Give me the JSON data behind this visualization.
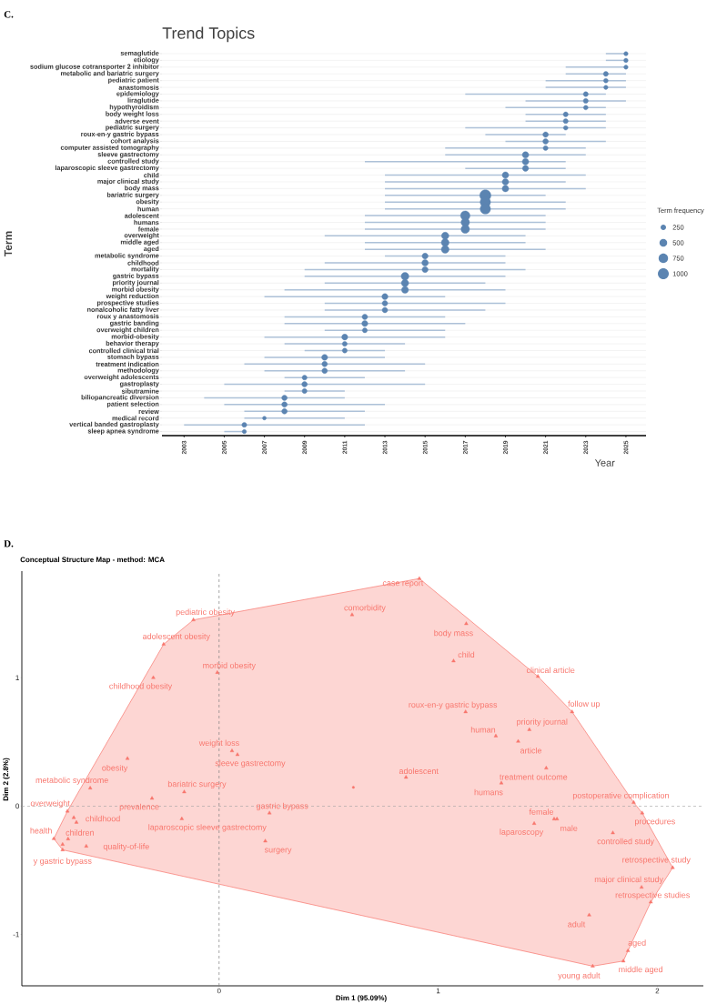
{
  "chart_data": [
    {
      "type": "bubble",
      "orientation": "horizontal",
      "title": "Trend Topics",
      "xlabel": "Year",
      "ylabel": "Term",
      "legend_title": "Term frequency",
      "annotations": [
        "C."
      ],
      "categories": [
        "semaglutide",
        "etiology",
        "sodium glucose cotransporter 2 inhibitor",
        "metabolic and bariatric surgery",
        "pediatric patient",
        "anastomosis",
        "epidemiology",
        "liraglutide",
        "hypothyroidism",
        "body weight loss",
        "adverse event",
        "pediatric surgery",
        "roux-en-y gastric bypass",
        "cohort analysis",
        "computer assisted tomography",
        "sleeve gastrectomy",
        "controlled study",
        "laparoscopic sleeve gastrectomy",
        "child",
        "major clinical study",
        "body mass",
        "bariatric surgery",
        "obesity",
        "human",
        "adolescent",
        "humans",
        "female",
        "overweight",
        "middle aged",
        "aged",
        "metabolic syndrome",
        "childhood",
        "mortality",
        "gastric bypass",
        "priority journal",
        "morbid obesity",
        "weight reduction",
        "prospective studies",
        "nonalcoholic fatty liver",
        "roux y anastomosis",
        "gastric banding",
        "overweight children",
        "morbid-obesity",
        "behavior therapy",
        "controlled clinical trial",
        "stomach bypass",
        "treatment indication",
        "methodology",
        "overweight adolescents",
        "gastroplasty",
        "sibutramine",
        "biliopancreatic diversion",
        "patient selection",
        "review",
        "medical record",
        "vertical banded gastroplasty",
        "sleep apnea syndrome"
      ],
      "values": [
        2025,
        2025,
        2025,
        2024,
        2024,
        2024,
        2023,
        2023,
        2023,
        2022,
        2022,
        2022,
        2021,
        2021,
        2021,
        2020,
        2020,
        2020,
        2019,
        2019,
        2019,
        2018,
        2018,
        2018,
        2017,
        2017,
        2017,
        2016,
        2016,
        2016,
        2015,
        2015,
        2015,
        2014,
        2014,
        2014,
        2013,
        2013,
        2013,
        2012,
        2012,
        2012,
        2011,
        2011,
        2011,
        2010,
        2010,
        2010,
        2009,
        2009,
        2009,
        2008,
        2008,
        2008,
        2007,
        2006,
        2006
      ],
      "errors": [
        [
          2024,
          2025
        ],
        [
          2024,
          2025
        ],
        [
          2022,
          2025
        ],
        [
          2022,
          2025
        ],
        [
          2021,
          2025
        ],
        [
          2021,
          2025
        ],
        [
          2017,
          2024
        ],
        [
          2020,
          2025
        ],
        [
          2019,
          2024
        ],
        [
          2020,
          2024
        ],
        [
          2020,
          2024
        ],
        [
          2017,
          2024
        ],
        [
          2018,
          2022
        ],
        [
          2019,
          2024
        ],
        [
          2016,
          2023
        ],
        [
          2016,
          2023
        ],
        [
          2012,
          2022
        ],
        [
          2017,
          2022
        ],
        [
          2013,
          2023
        ],
        [
          2013,
          2022
        ],
        [
          2013,
          2023
        ],
        [
          2013,
          2021
        ],
        [
          2013,
          2022
        ],
        [
          2013,
          2022
        ],
        [
          2012,
          2021
        ],
        [
          2012,
          2021
        ],
        [
          2012,
          2021
        ],
        [
          2010,
          2020
        ],
        [
          2012,
          2020
        ],
        [
          2012,
          2021
        ],
        [
          2013,
          2019
        ],
        [
          2010,
          2019
        ],
        [
          2009,
          2020
        ],
        [
          2009,
          2019
        ],
        [
          2010,
          2018
        ],
        [
          2008,
          2019
        ],
        [
          2007,
          2016
        ],
        [
          2010,
          2019
        ],
        [
          2010,
          2018
        ],
        [
          2008,
          2016
        ],
        [
          2008,
          2017
        ],
        [
          2010,
          2016
        ],
        [
          2007,
          2016
        ],
        [
          2008,
          2014
        ],
        [
          2009,
          2013
        ],
        [
          2007,
          2013
        ],
        [
          2006,
          2015
        ],
        [
          2007,
          2014
        ],
        [
          2008,
          2012
        ],
        [
          2005,
          2015
        ],
        [
          2008,
          2011
        ],
        [
          2004,
          2011
        ],
        [
          2005,
          2013
        ],
        [
          2006,
          2012
        ],
        [
          2006,
          2011
        ],
        [
          2003,
          2012
        ],
        [
          2005,
          2006
        ]
      ],
      "sizes": [
        150,
        150,
        150,
        200,
        170,
        150,
        200,
        200,
        170,
        200,
        200,
        170,
        250,
        250,
        200,
        350,
        350,
        300,
        350,
        350,
        350,
        1050,
        900,
        900,
        750,
        600,
        600,
        450,
        500,
        500,
        300,
        350,
        300,
        500,
        450,
        400,
        300,
        250,
        250,
        250,
        300,
        200,
        300,
        200,
        200,
        300,
        250,
        250,
        200,
        250,
        200,
        250,
        250,
        250,
        120,
        200,
        150
      ],
      "size_legend": [
        250,
        500,
        750,
        1000
      ],
      "color": "#5b84b1",
      "xlim": [
        2001.9,
        2026
      ],
      "xticks": [
        2003,
        2005,
        2007,
        2009,
        2011,
        2013,
        2015,
        2017,
        2019,
        2021,
        2023,
        2025
      ],
      "grid": "y"
    },
    {
      "type": "scatter",
      "title": "Conceptual Structure Map - method: MCA",
      "xlabel": "Dim 1 (95.09%)",
      "ylabel": "Dim 2 (2.8%)",
      "annotations": [
        "D.",
        {
          "text": "case report",
          "x": 0.914,
          "y": 1.772
        },
        {
          "text": "comorbidity",
          "x": 0.607,
          "y": 1.49
        },
        {
          "text": "pediatric obesity",
          "x": -0.117,
          "y": 1.45
        },
        {
          "text": "adolescent obesity",
          "x": -0.253,
          "y": 1.26
        },
        {
          "text": "morbid obesity",
          "x": -0.008,
          "y": 1.04
        },
        {
          "text": "childhood obesity",
          "x": -0.3,
          "y": 1.0
        },
        {
          "text": "weight loss",
          "x": 0.059,
          "y": 0.43
        },
        {
          "text": "sleeve gastrectomy",
          "x": 0.084,
          "y": 0.4
        },
        {
          "text": "obesity",
          "x": -0.418,
          "y": 0.37
        },
        {
          "text": "metabolic syndrome",
          "x": -0.588,
          "y": 0.14
        },
        {
          "text": "bariatric surgery",
          "x": -0.159,
          "y": 0.11
        },
        {
          "text": "overweight",
          "x": -0.692,
          "y": -0.04
        },
        {
          "text": "prevalence",
          "x": -0.306,
          "y": 0.06
        },
        {
          "text": "gastric bypass",
          "x": 0.23,
          "y": -0.054
        },
        {
          "text": "childhood",
          "x": -0.663,
          "y": -0.09
        },
        {
          "text": "laparoscopic sleeve gastrectomy",
          "x": -0.17,
          "y": -0.099
        },
        {
          "text": "health",
          "x": -0.754,
          "y": -0.254
        },
        {
          "text": "children",
          "x": -0.689,
          "y": -0.256
        },
        {
          "text": "quality-of-life",
          "x": -0.606,
          "y": -0.313
        },
        {
          "text": "y gastric bypass",
          "x": -0.714,
          "y": -0.341
        },
        {
          "text": "surgery",
          "x": 0.211,
          "y": -0.273
        },
        {
          "text": "body mass",
          "x": 1.128,
          "y": 1.42
        },
        {
          "text": "child",
          "x": 1.07,
          "y": 1.13
        },
        {
          "text": "clinical article",
          "x": 1.455,
          "y": 1.01
        },
        {
          "text": "roux-en-y gastric bypass",
          "x": 1.125,
          "y": 0.734
        },
        {
          "text": "follow up",
          "x": 1.611,
          "y": 0.734
        },
        {
          "text": "priority journal",
          "x": 1.416,
          "y": 0.595
        },
        {
          "text": "human",
          "x": 1.263,
          "y": 0.546
        },
        {
          "text": "article",
          "x": 1.365,
          "y": 0.504
        },
        {
          "text": "adolescent",
          "x": 0.853,
          "y": 0.224
        },
        {
          "text": "treatment outcome",
          "x": 1.493,
          "y": 0.296
        },
        {
          "text": "humans",
          "x": 1.288,
          "y": 0.179
        },
        {
          "text": "postoperative complication",
          "x": 1.892,
          "y": 0.028
        },
        {
          "text": "female",
          "x": 1.529,
          "y": -0.101
        },
        {
          "text": "procedures",
          "x": 1.931,
          "y": -0.054
        },
        {
          "text": "male",
          "x": 1.542,
          "y": -0.101
        },
        {
          "text": "laparoscopy",
          "x": 1.438,
          "y": -0.136
        },
        {
          "text": "controlled study",
          "x": 1.797,
          "y": -0.209
        },
        {
          "text": "retrospective study",
          "x": 2.07,
          "y": -0.48
        },
        {
          "text": "major clinical study",
          "x": 1.928,
          "y": -0.633
        },
        {
          "text": "retrospective studies",
          "x": 1.97,
          "y": -0.748
        },
        {
          "text": "adult",
          "x": 1.689,
          "y": -0.849
        },
        {
          "text": "aged",
          "x": 1.866,
          "y": -1.127
        },
        {
          "text": "middle aged",
          "x": 1.845,
          "y": -1.207
        },
        {
          "text": "young adult",
          "x": 1.705,
          "y": -1.247
        }
      ],
      "series": [
        {
          "type": "area",
          "color": "#f8766d",
          "x": [
            0.914,
            1.455,
            1.611,
            1.892,
            1.931,
            2.07,
            1.97,
            1.866,
            1.845,
            1.705,
            -0.714,
            -0.754,
            -0.692,
            -0.253,
            -0.117,
            0.914
          ],
          "values": [
            1.772,
            1.01,
            0.734,
            0.028,
            -0.054,
            -0.48,
            -0.748,
            -1.127,
            -1.207,
            -1.247,
            -0.341,
            -0.254,
            -0.04,
            1.26,
            1.45,
            1.772
          ]
        },
        {
          "color": "#f8766d",
          "marker": "triangle",
          "x": [
            0.914,
            0.607,
            -0.117,
            -0.253,
            -0.008,
            -0.3,
            0.059,
            0.084,
            -0.418,
            -0.588,
            -0.159,
            -0.692,
            -0.306,
            0.23,
            -0.663,
            -0.17,
            -0.754,
            -0.689,
            -0.606,
            -0.714,
            0.211,
            1.128,
            1.07,
            1.455,
            1.125,
            1.611,
            1.416,
            1.263,
            1.365,
            0.853,
            1.493,
            1.288,
            1.892,
            1.529,
            1.931,
            1.542,
            1.438,
            1.797,
            2.07,
            1.928,
            1.97,
            1.689,
            1.866,
            1.845,
            1.705,
            -0.651,
            -0.714
          ],
          "values": [
            1.772,
            1.49,
            1.45,
            1.26,
            1.04,
            1.0,
            0.43,
            0.4,
            0.37,
            0.14,
            0.11,
            -0.04,
            0.06,
            -0.054,
            -0.09,
            -0.099,
            -0.254,
            -0.256,
            -0.313,
            -0.341,
            -0.273,
            1.42,
            1.13,
            1.01,
            0.734,
            0.734,
            0.595,
            0.546,
            0.504,
            0.224,
            0.296,
            0.179,
            0.028,
            -0.101,
            -0.054,
            -0.101,
            -0.136,
            -0.209,
            -0.48,
            -0.633,
            -0.748,
            -0.849,
            -1.127,
            -1.207,
            -1.247,
            -0.127,
            -0.299
          ]
        },
        {
          "color": "#f8766d",
          "marker": "circle",
          "x": [
            0.613
          ],
          "values": [
            0.146
          ]
        }
      ],
      "xlim": [
        -0.9,
        2.21
      ],
      "ylim": [
        -1.4,
        1.83
      ],
      "xticks": [
        0,
        1,
        2
      ],
      "yticks": [
        -1,
        0,
        1
      ],
      "ref_lines": [
        {
          "axis": "x",
          "value": 0,
          "line_style": "dashed",
          "color": "#808080"
        },
        {
          "axis": "y",
          "value": 0,
          "line_style": "dashed",
          "color": "#a0a0a0"
        }
      ]
    }
  ]
}
